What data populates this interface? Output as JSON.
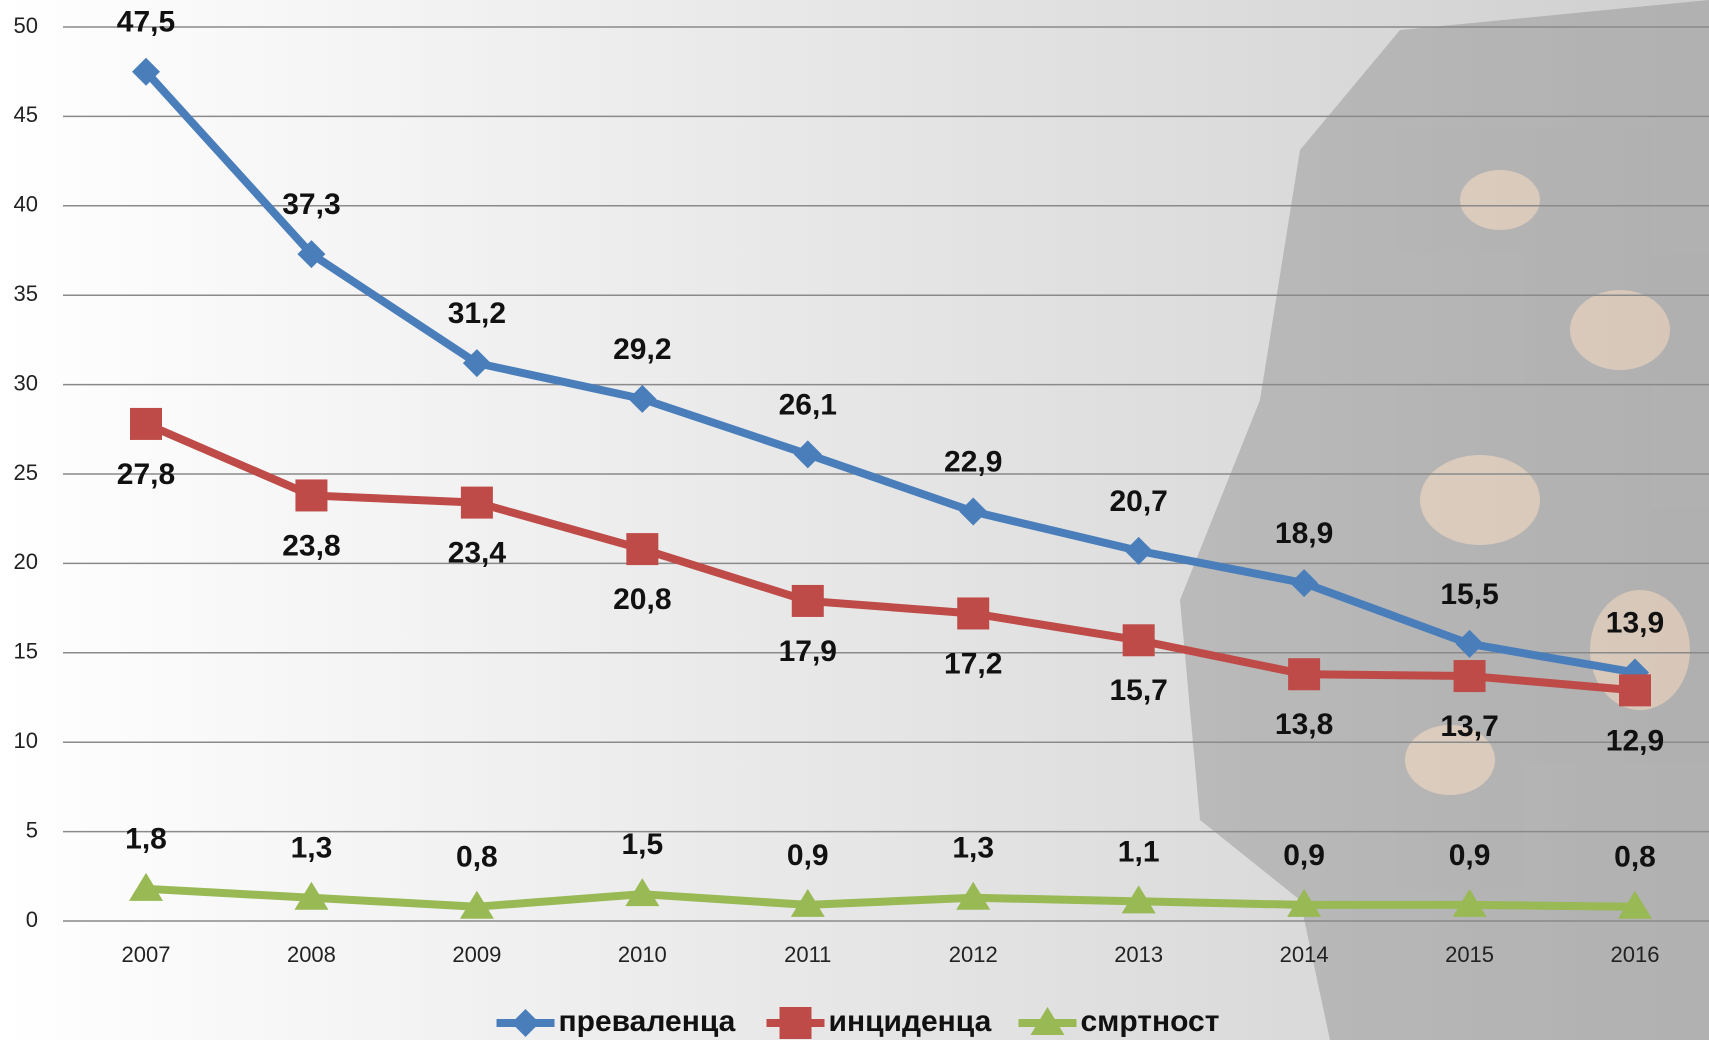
{
  "chart_data": {
    "type": "line",
    "categories": [
      "2007",
      "2008",
      "2009",
      "2010",
      "2011",
      "2012",
      "2013",
      "2014",
      "2015",
      "2016"
    ],
    "series": [
      {
        "name": "преваленца",
        "color": "#4a7ebb",
        "marker": "diamond",
        "values": [
          47.5,
          37.3,
          31.2,
          29.2,
          26.1,
          22.9,
          20.7,
          18.9,
          15.5,
          13.9
        ],
        "value_labels": [
          "47,5",
          "37,3",
          "31,2",
          "29,2",
          "26,1",
          "22,9",
          "20,7",
          "18,9",
          "15,5",
          "13,9"
        ]
      },
      {
        "name": "инциденца",
        "color": "#be4b48",
        "marker": "square",
        "values": [
          27.8,
          23.8,
          23.4,
          20.8,
          17.9,
          17.2,
          15.7,
          13.8,
          13.7,
          12.9
        ],
        "value_labels": [
          "27,8",
          "23,8",
          "23,4",
          "20,8",
          "17,9",
          "17,2",
          "15,7",
          "13,8",
          "13,7",
          "12,9"
        ]
      },
      {
        "name": "смртност",
        "color": "#98b954",
        "marker": "triangle",
        "values": [
          1.8,
          1.3,
          0.8,
          1.5,
          0.9,
          1.3,
          1.1,
          0.9,
          0.9,
          0.8
        ],
        "value_labels": [
          "1,8",
          "1,3",
          "0,8",
          "1,5",
          "0,9",
          "1,3",
          "1,1",
          "0,9",
          "0,9",
          "0,8"
        ]
      }
    ],
    "ylim": [
      0,
      50
    ],
    "yticks": [
      0,
      5,
      10,
      15,
      20,
      25,
      30,
      35,
      40,
      45,
      50
    ],
    "grid": true,
    "legend": "bottom"
  }
}
